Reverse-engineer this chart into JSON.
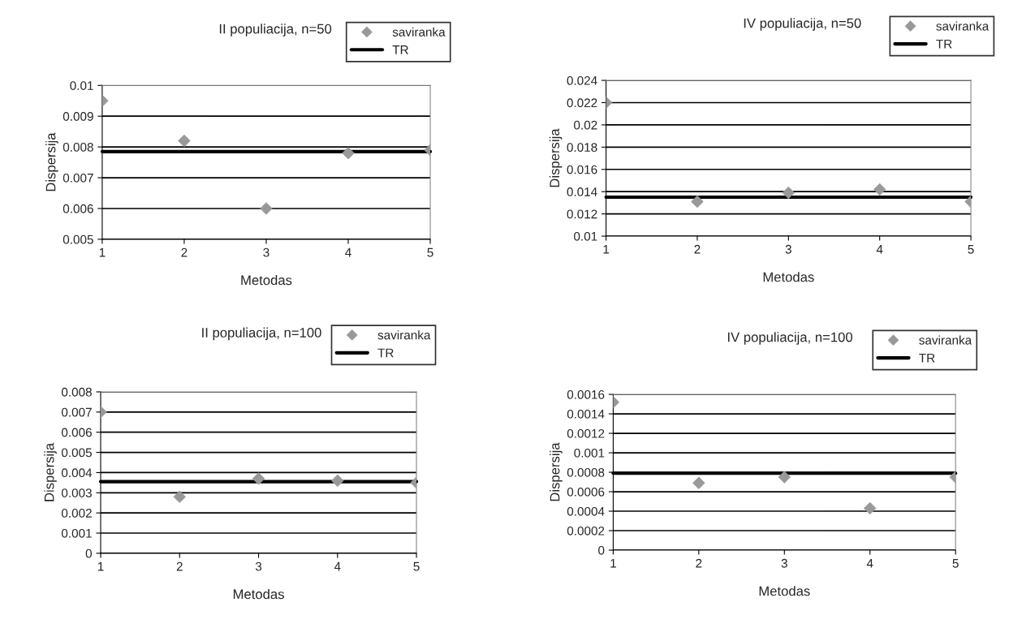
{
  "chart_data": [
    {
      "type": "scatter",
      "title": "II populiacija, n=50",
      "xlabel": "Metodas",
      "ylabel": "Dispersija",
      "x": [
        1,
        2,
        3,
        4,
        5
      ],
      "xlim": [
        1,
        5
      ],
      "xticks": [
        1,
        2,
        3,
        4,
        5
      ],
      "ylim": [
        0.005,
        0.01
      ],
      "yticks": [
        0.005,
        0.006,
        0.007,
        0.008,
        0.009,
        0.01
      ],
      "grid": "y",
      "legend": "top right",
      "marker": "diamond",
      "series": [
        {
          "name": "saviranka",
          "color": "#999999",
          "values": [
            0.0095,
            0.0082,
            0.006,
            0.0078,
            0.0079
          ]
        },
        {
          "name": "TR",
          "type": "line",
          "color": "#000000",
          "line_style": "solid",
          "marker": "none",
          "values": [
            0.00785,
            0.00785,
            0.00785,
            0.00785,
            0.00785
          ]
        }
      ]
    },
    {
      "type": "scatter",
      "title": "IV populiacija, n=50",
      "xlabel": "Metodas",
      "ylabel": "Dispersija",
      "x": [
        1,
        2,
        3,
        4,
        5
      ],
      "xlim": [
        1,
        5
      ],
      "xticks": [
        1,
        2,
        3,
        4,
        5
      ],
      "ylim": [
        0.01,
        0.024
      ],
      "yticks": [
        0.01,
        0.012,
        0.014,
        0.016,
        0.018,
        0.02,
        0.022,
        0.024
      ],
      "grid": "y",
      "legend": "top right",
      "marker": "diamond",
      "series": [
        {
          "name": "saviranka",
          "color": "#999999",
          "values": [
            0.022,
            0.0131,
            0.0139,
            0.0142,
            0.0131
          ]
        },
        {
          "name": "TR",
          "type": "line",
          "color": "#000000",
          "line_style": "solid",
          "marker": "none",
          "values": [
            0.0135,
            0.0135,
            0.0135,
            0.0135,
            0.0135
          ]
        }
      ]
    },
    {
      "type": "scatter",
      "title": "II populiacija, n=100",
      "xlabel": "Metodas",
      "ylabel": "Dispersija",
      "x": [
        1,
        2,
        3,
        4,
        5
      ],
      "xlim": [
        1,
        5
      ],
      "xticks": [
        1,
        2,
        3,
        4,
        5
      ],
      "ylim": [
        0,
        0.008
      ],
      "yticks": [
        0,
        0.001,
        0.002,
        0.003,
        0.004,
        0.005,
        0.006,
        0.007,
        0.008
      ],
      "grid": "y",
      "legend": "top right",
      "marker": "diamond",
      "series": [
        {
          "name": "saviranka",
          "color": "#999999",
          "values": [
            0.007,
            0.0028,
            0.0037,
            0.0036,
            0.0035
          ]
        },
        {
          "name": "TR",
          "type": "line",
          "color": "#000000",
          "line_style": "solid",
          "marker": "none",
          "values": [
            0.00355,
            0.00355,
            0.00355,
            0.00355,
            0.00355
          ]
        }
      ]
    },
    {
      "type": "scatter",
      "title": "IV populiacija, n=100",
      "xlabel": "Metodas",
      "ylabel": "Dispersija",
      "x": [
        1,
        2,
        3,
        4,
        5
      ],
      "xlim": [
        1,
        5
      ],
      "xticks": [
        1,
        2,
        3,
        4,
        5
      ],
      "ylim": [
        0,
        0.0016
      ],
      "yticks": [
        0,
        0.0002,
        0.0004,
        0.0006,
        0.0008,
        0.001,
        0.0012,
        0.0014,
        0.0016
      ],
      "grid": "y",
      "legend": "top right",
      "marker": "diamond",
      "series": [
        {
          "name": "saviranka",
          "color": "#999999",
          "values": [
            0.00152,
            0.00069,
            0.00075,
            0.00043,
            0.00075
          ]
        },
        {
          "name": "TR",
          "type": "line",
          "color": "#000000",
          "line_style": "solid",
          "marker": "none",
          "values": [
            0.00079,
            0.00079,
            0.00079,
            0.00079,
            0.00079
          ]
        }
      ]
    }
  ]
}
